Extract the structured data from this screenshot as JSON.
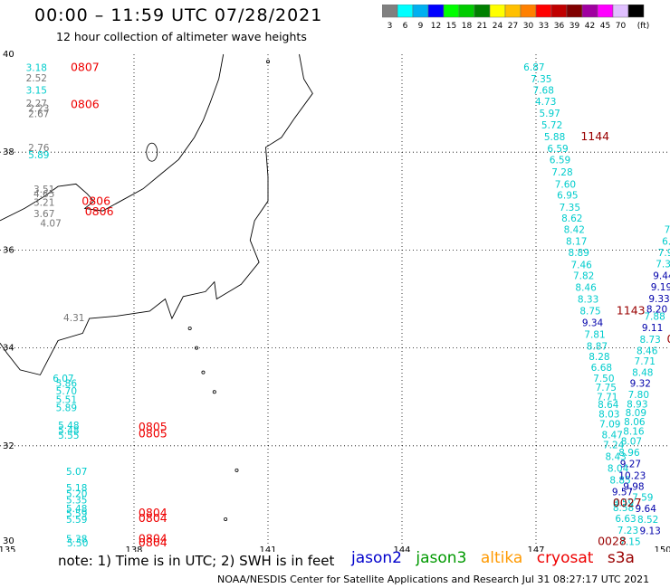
{
  "title": "00:00 – 11:59 UTC 07/28/2021",
  "subtitle": "12 hour collection of altimeter wave heights",
  "scale": {
    "colors": [
      "#808080",
      "#00ffff",
      "#00b0f0",
      "#0000ff",
      "#00ff00",
      "#00cc00",
      "#008000",
      "#ffff00",
      "#ffc000",
      "#ff8000",
      "#ff0000",
      "#c00000",
      "#800000",
      "#a000a0",
      "#ff00ff",
      "#e0c0ff",
      "#000000"
    ],
    "labels": [
      "3",
      "6",
      "9",
      "12",
      "15",
      "18",
      "21",
      "24",
      "27",
      "30",
      "33",
      "36",
      "39",
      "42",
      "45",
      "70",
      "(ft)"
    ]
  },
  "note": "note:  1) Time is in UTC;  2) SWH is in feet",
  "satellites": [
    {
      "name": "jason2",
      "color": "#0000cc"
    },
    {
      "name": "jason3",
      "color": "#009900"
    },
    {
      "name": "altika",
      "color": "#ff9900"
    },
    {
      "name": "cryosat",
      "color": "#ee0000"
    },
    {
      "name": "s3a",
      "color": "#990000"
    }
  ],
  "footer": "NOAA/NESDIS Center for Satellite Applications and Research    Jul 31 08:27:17 UTC 2021",
  "map": {
    "lon_range": [
      135,
      150
    ],
    "lat_range": [
      30,
      40
    ],
    "lon_ticks": [
      "135",
      "138",
      "141",
      "144",
      "147",
      "150"
    ],
    "lat_ticks": [
      "40",
      "38",
      "36",
      "34",
      "32",
      "30"
    ],
    "colors": {
      "cyan": "#00cccc",
      "blue": "#0000aa",
      "gray": "#777777",
      "red": "#ee0000",
      "darkred": "#990000"
    }
  },
  "labels": [
    {
      "t": "3.18",
      "lon": 135.58,
      "lat": 39.73,
      "c": "cyan"
    },
    {
      "t": "0807",
      "lon": 136.58,
      "lat": 39.73,
      "c": "red"
    },
    {
      "t": "2.52",
      "lon": 135.58,
      "lat": 39.52,
      "c": "gray"
    },
    {
      "t": "3.15",
      "lon": 135.58,
      "lat": 39.27,
      "c": "cyan"
    },
    {
      "t": "2.27",
      "lon": 135.58,
      "lat": 39.0,
      "c": "gray"
    },
    {
      "t": "2.23",
      "lon": 135.63,
      "lat": 38.9,
      "c": "gray"
    },
    {
      "t": "2.67",
      "lon": 135.63,
      "lat": 38.79,
      "c": "gray"
    },
    {
      "t": "0806",
      "lon": 136.58,
      "lat": 38.97,
      "c": "red"
    },
    {
      "t": "2.76",
      "lon": 135.63,
      "lat": 38.1,
      "c": "gray"
    },
    {
      "t": "5.89",
      "lon": 135.63,
      "lat": 37.95,
      "c": "cyan"
    },
    {
      "t": "3.51",
      "lon": 135.75,
      "lat": 37.25,
      "c": "gray"
    },
    {
      "t": "4.65",
      "lon": 135.75,
      "lat": 37.15,
      "c": "gray"
    },
    {
      "t": "3.21",
      "lon": 135.75,
      "lat": 36.98,
      "c": "gray"
    },
    {
      "t": "0806",
      "lon": 136.83,
      "lat": 37.0,
      "c": "red"
    },
    {
      "t": "3.67",
      "lon": 135.75,
      "lat": 36.75,
      "c": "gray"
    },
    {
      "t": "0806",
      "lon": 136.9,
      "lat": 36.78,
      "c": "red"
    },
    {
      "t": "4.07",
      "lon": 135.9,
      "lat": 36.55,
      "c": "gray"
    },
    {
      "t": "4.31",
      "lon": 136.42,
      "lat": 34.62,
      "c": "gray"
    },
    {
      "t": "6.07",
      "lon": 136.18,
      "lat": 33.38,
      "c": "cyan"
    },
    {
      "t": "5.86",
      "lon": 136.25,
      "lat": 33.28,
      "c": "cyan"
    },
    {
      "t": "5.70",
      "lon": 136.25,
      "lat": 33.12,
      "c": "cyan"
    },
    {
      "t": "5.51",
      "lon": 136.25,
      "lat": 32.95,
      "c": "cyan"
    },
    {
      "t": "5.89",
      "lon": 136.25,
      "lat": 32.78,
      "c": "cyan"
    },
    {
      "t": "5.48",
      "lon": 136.3,
      "lat": 32.42,
      "c": "cyan"
    },
    {
      "t": "5.48",
      "lon": 136.3,
      "lat": 32.32,
      "c": "cyan"
    },
    {
      "t": "5.55",
      "lon": 136.3,
      "lat": 32.22,
      "c": "cyan"
    },
    {
      "t": "0805",
      "lon": 138.1,
      "lat": 32.38,
      "c": "red"
    },
    {
      "t": "0805",
      "lon": 138.1,
      "lat": 32.25,
      "c": "red"
    },
    {
      "t": "5.07",
      "lon": 136.48,
      "lat": 31.48,
      "c": "cyan"
    },
    {
      "t": "5.18",
      "lon": 136.48,
      "lat": 31.15,
      "c": "cyan"
    },
    {
      "t": "5.20",
      "lon": 136.48,
      "lat": 31.03,
      "c": "cyan"
    },
    {
      "t": "5.35",
      "lon": 136.48,
      "lat": 30.9,
      "c": "cyan"
    },
    {
      "t": "5.48",
      "lon": 136.48,
      "lat": 30.72,
      "c": "cyan"
    },
    {
      "t": "5.59",
      "lon": 136.48,
      "lat": 30.62,
      "c": "cyan"
    },
    {
      "t": "5.59",
      "lon": 136.48,
      "lat": 30.5,
      "c": "cyan"
    },
    {
      "t": "0804",
      "lon": 138.1,
      "lat": 30.63,
      "c": "red"
    },
    {
      "t": "0804",
      "lon": 138.1,
      "lat": 30.52,
      "c": "red"
    },
    {
      "t": "5.38",
      "lon": 136.48,
      "lat": 30.1,
      "c": "cyan"
    },
    {
      "t": "5.50",
      "lon": 136.5,
      "lat": 30.02,
      "c": "cyan"
    },
    {
      "t": "0804",
      "lon": 138.1,
      "lat": 30.1,
      "c": "red"
    },
    {
      "t": "0804",
      "lon": 138.1,
      "lat": 30.02,
      "c": "red"
    },
    {
      "t": "6.87",
      "lon": 146.72,
      "lat": 39.74,
      "c": "cyan"
    },
    {
      "t": "7.35",
      "lon": 146.88,
      "lat": 39.5,
      "c": "cyan"
    },
    {
      "t": "7.68",
      "lon": 146.93,
      "lat": 39.27,
      "c": "cyan"
    },
    {
      "t": "4.73",
      "lon": 146.98,
      "lat": 39.04,
      "c": "cyan"
    },
    {
      "t": "5.97",
      "lon": 147.07,
      "lat": 38.8,
      "c": "cyan"
    },
    {
      "t": "5.72",
      "lon": 147.12,
      "lat": 38.56,
      "c": "cyan"
    },
    {
      "t": "5.88",
      "lon": 147.18,
      "lat": 38.32,
      "c": "cyan"
    },
    {
      "t": "1144",
      "lon": 148.0,
      "lat": 38.32,
      "c": "darkred"
    },
    {
      "t": "6.59",
      "lon": 147.25,
      "lat": 38.08,
      "c": "cyan"
    },
    {
      "t": "6.59",
      "lon": 147.3,
      "lat": 37.85,
      "c": "cyan"
    },
    {
      "t": "7.28",
      "lon": 147.35,
      "lat": 37.6,
      "c": "cyan"
    },
    {
      "t": "7.60",
      "lon": 147.42,
      "lat": 37.35,
      "c": "cyan"
    },
    {
      "t": "6.95",
      "lon": 147.47,
      "lat": 37.13,
      "c": "cyan"
    },
    {
      "t": "7.35",
      "lon": 147.52,
      "lat": 36.88,
      "c": "cyan"
    },
    {
      "t": "8.62",
      "lon": 147.57,
      "lat": 36.65,
      "c": "cyan"
    },
    {
      "t": "8.42",
      "lon": 147.62,
      "lat": 36.42,
      "c": "cyan"
    },
    {
      "t": "8.17",
      "lon": 147.67,
      "lat": 36.18,
      "c": "cyan"
    },
    {
      "t": "8.89",
      "lon": 147.72,
      "lat": 35.95,
      "c": "cyan"
    },
    {
      "t": "7.46",
      "lon": 147.78,
      "lat": 35.7,
      "c": "cyan"
    },
    {
      "t": "7.82",
      "lon": 147.83,
      "lat": 35.48,
      "c": "cyan"
    },
    {
      "t": "8.46",
      "lon": 147.88,
      "lat": 35.24,
      "c": "cyan"
    },
    {
      "t": "8.33",
      "lon": 147.93,
      "lat": 35.0,
      "c": "cyan"
    },
    {
      "t": "8.75",
      "lon": 147.98,
      "lat": 34.76,
      "c": "cyan"
    },
    {
      "t": "1143",
      "lon": 148.8,
      "lat": 34.76,
      "c": "darkred"
    },
    {
      "t": "9.34",
      "lon": 148.03,
      "lat": 34.52,
      "c": "blue"
    },
    {
      "t": "7.81",
      "lon": 148.08,
      "lat": 34.28,
      "c": "cyan"
    },
    {
      "t": "8.87",
      "lon": 148.13,
      "lat": 34.04,
      "c": "cyan"
    },
    {
      "t": "8.28",
      "lon": 148.18,
      "lat": 33.83,
      "c": "cyan"
    },
    {
      "t": "6.68",
      "lon": 148.23,
      "lat": 33.6,
      "c": "cyan"
    },
    {
      "t": "7.50",
      "lon": 148.28,
      "lat": 33.38,
      "c": "cyan"
    },
    {
      "t": "7.75",
      "lon": 148.33,
      "lat": 33.2,
      "c": "cyan"
    },
    {
      "t": "7.71",
      "lon": 148.36,
      "lat": 33.0,
      "c": "cyan"
    },
    {
      "t": "8.64",
      "lon": 148.38,
      "lat": 32.85,
      "c": "cyan"
    },
    {
      "t": "8.03",
      "lon": 148.4,
      "lat": 32.65,
      "c": "cyan"
    },
    {
      "t": "7.09",
      "lon": 148.42,
      "lat": 32.45,
      "c": "cyan"
    },
    {
      "t": "8.47",
      "lon": 148.47,
      "lat": 32.23,
      "c": "cyan"
    },
    {
      "t": "7.24",
      "lon": 148.5,
      "lat": 32.02,
      "c": "cyan"
    },
    {
      "t": "8.43",
      "lon": 148.55,
      "lat": 31.78,
      "c": "cyan"
    },
    {
      "t": "8.04",
      "lon": 148.6,
      "lat": 31.54,
      "c": "cyan"
    },
    {
      "t": "8.85",
      "lon": 148.65,
      "lat": 31.3,
      "c": "cyan"
    },
    {
      "t": "9.57",
      "lon": 148.7,
      "lat": 31.06,
      "c": "blue"
    },
    {
      "t": "8.59",
      "lon": 148.72,
      "lat": 30.84,
      "c": "cyan"
    },
    {
      "t": "8.58",
      "lon": 148.72,
      "lat": 30.74,
      "c": "cyan"
    },
    {
      "t": "6.63",
      "lon": 148.77,
      "lat": 30.52,
      "c": "cyan"
    },
    {
      "t": "7.23",
      "lon": 148.82,
      "lat": 30.28,
      "c": "cyan"
    },
    {
      "t": "7.15",
      "lon": 148.87,
      "lat": 30.05,
      "c": "cyan"
    },
    {
      "t": "7",
      "lon": 149.87,
      "lat": 36.42,
      "c": "cyan"
    },
    {
      "t": "6.",
      "lon": 149.82,
      "lat": 36.18,
      "c": "cyan"
    },
    {
      "t": "7.9",
      "lon": 149.73,
      "lat": 35.95,
      "c": "cyan"
    },
    {
      "t": "7.3",
      "lon": 149.68,
      "lat": 35.72,
      "c": "cyan"
    },
    {
      "t": "9.44",
      "lon": 149.62,
      "lat": 35.48,
      "c": "blue"
    },
    {
      "t": "9.19",
      "lon": 149.57,
      "lat": 35.25,
      "c": "blue"
    },
    {
      "t": "9.33",
      "lon": 149.52,
      "lat": 35.01,
      "c": "blue"
    },
    {
      "t": "8.20",
      "lon": 149.47,
      "lat": 34.8,
      "c": "blue"
    },
    {
      "t": "7.88",
      "lon": 149.42,
      "lat": 34.65,
      "c": "cyan"
    },
    {
      "t": "9.11",
      "lon": 149.37,
      "lat": 34.42,
      "c": "blue"
    },
    {
      "t": "8.73",
      "lon": 149.32,
      "lat": 34.18,
      "c": "cyan"
    },
    {
      "t": "0",
      "lon": 149.93,
      "lat": 34.18,
      "c": "darkred"
    },
    {
      "t": "8.46",
      "lon": 149.25,
      "lat": 33.95,
      "c": "cyan"
    },
    {
      "t": "7.71",
      "lon": 149.2,
      "lat": 33.73,
      "c": "cyan"
    },
    {
      "t": "8.48",
      "lon": 149.15,
      "lat": 33.5,
      "c": "cyan"
    },
    {
      "t": "9.32",
      "lon": 149.1,
      "lat": 33.28,
      "c": "blue"
    },
    {
      "t": "7.80",
      "lon": 149.06,
      "lat": 33.05,
      "c": "cyan"
    },
    {
      "t": "8.93",
      "lon": 149.03,
      "lat": 32.86,
      "c": "cyan"
    },
    {
      "t": "8.09",
      "lon": 149.0,
      "lat": 32.68,
      "c": "cyan"
    },
    {
      "t": "8.06",
      "lon": 148.97,
      "lat": 32.5,
      "c": "cyan"
    },
    {
      "t": "8.16",
      "lon": 148.95,
      "lat": 32.3,
      "c": "cyan"
    },
    {
      "t": "8.07",
      "lon": 148.9,
      "lat": 32.1,
      "c": "cyan"
    },
    {
      "t": "8.96",
      "lon": 148.85,
      "lat": 31.87,
      "c": "cyan"
    },
    {
      "t": "9.27",
      "lon": 148.88,
      "lat": 31.64,
      "c": "blue"
    },
    {
      "t": "10.23",
      "lon": 148.85,
      "lat": 31.4,
      "c": "blue"
    },
    {
      "t": "9.98",
      "lon": 148.95,
      "lat": 31.17,
      "c": "blue"
    },
    {
      "t": "7.59",
      "lon": 149.15,
      "lat": 30.95,
      "c": "cyan"
    },
    {
      "t": "0027",
      "lon": 148.72,
      "lat": 30.83,
      "c": "darkred"
    },
    {
      "t": "9.64",
      "lon": 149.22,
      "lat": 30.72,
      "c": "blue"
    },
    {
      "t": "8.52",
      "lon": 149.27,
      "lat": 30.5,
      "c": "cyan"
    },
    {
      "t": "9.13",
      "lon": 149.32,
      "lat": 30.27,
      "c": "blue"
    },
    {
      "t": "0028",
      "lon": 148.38,
      "lat": 30.05,
      "c": "darkred"
    }
  ]
}
